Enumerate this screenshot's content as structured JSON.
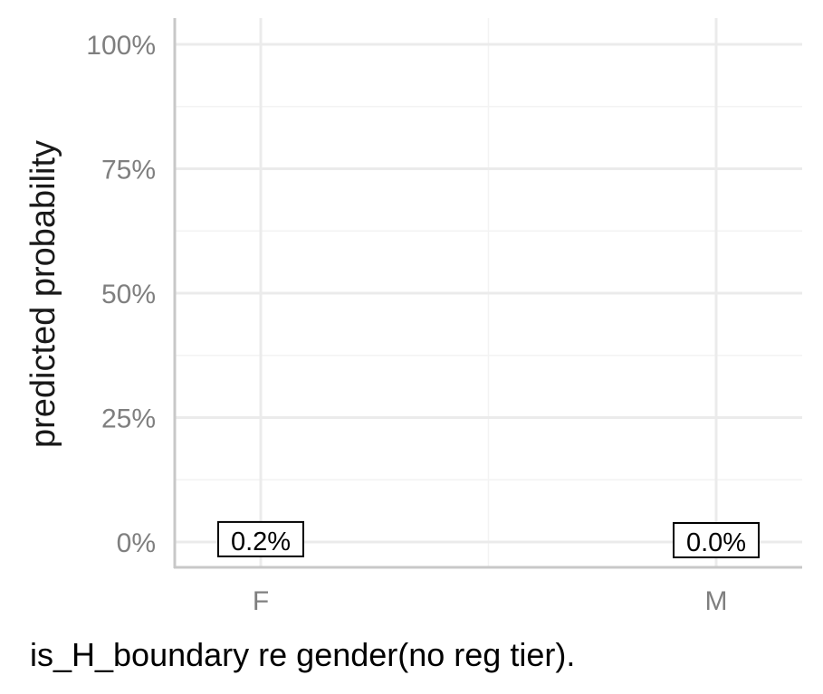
{
  "chart_data": {
    "type": "scatter",
    "title": "",
    "caption": "is_H_boundary re gender(no reg tier).",
    "xlabel": "",
    "ylabel": "predicted probability",
    "categories": [
      "F",
      "M"
    ],
    "values": [
      0.002,
      0.0
    ],
    "value_labels": [
      "0.2%",
      "0.0%"
    ],
    "ylim": [
      0,
      1
    ],
    "yticks": [
      0,
      0.25,
      0.5,
      0.75,
      1.0
    ],
    "ytick_labels": [
      "0%",
      "25%",
      "50%",
      "75%",
      "100%"
    ],
    "grid": true,
    "legend": "none"
  },
  "colors": {
    "grid_major": "#ebebeb",
    "grid_minor": "#f3f3f3",
    "axis_line": "#c8c8c8",
    "tick_text": "#7f7f7f",
    "label_border": "#000000"
  }
}
